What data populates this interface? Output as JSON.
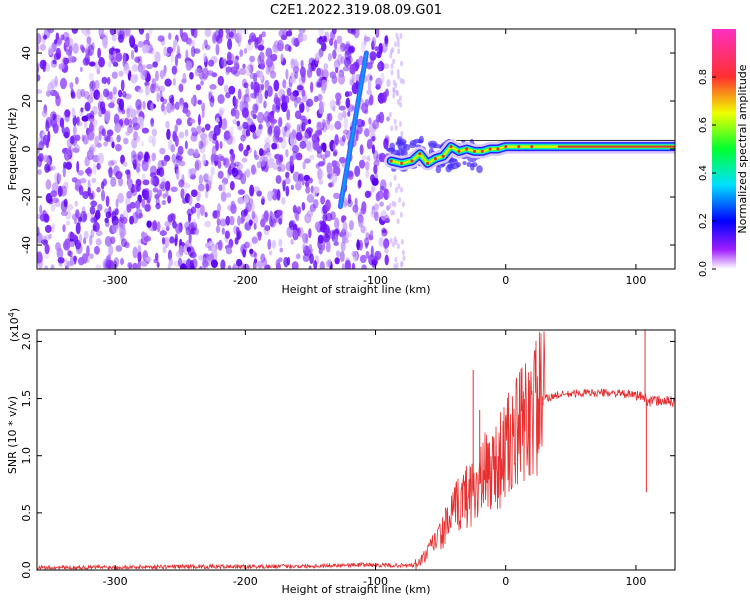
{
  "title": "C2E1.2022.319.08.09.G01",
  "colors": {
    "snr_line": "#e83030",
    "ridge_core": "#e03030",
    "scatter": "#7a22ff",
    "frame": "#000000"
  },
  "chart_data": [
    {
      "type": "heatmap",
      "xlabel": "Height of straight line (km)",
      "ylabel": "Frequency (Hz)",
      "xlim": [
        -360,
        130
      ],
      "ylim": [
        -50,
        50
      ],
      "xticks": [
        -300,
        -200,
        -100,
        0,
        100
      ],
      "yticks": [
        -40,
        -20,
        0,
        20,
        40
      ],
      "colorbar": {
        "label": "Normalized spectral amplitude",
        "range": [
          0,
          1
        ],
        "ticks": [
          "0.0",
          "0.2",
          "0.4",
          "0.6",
          "0.8"
        ],
        "colormap": [
          "#ffffff",
          "#a020ff",
          "#0000ff",
          "#00e0ff",
          "#00ff30",
          "#f0ff00",
          "#ff3030",
          "#ff30c0"
        ]
      },
      "features": {
        "noise_region_x": [
          -360,
          -90
        ],
        "diagonal_streak": {
          "x": [
            -127,
            -107
          ],
          "y": [
            -24,
            40
          ]
        },
        "ridge": {
          "x": [
            -88,
            -80,
            -72,
            -66,
            -60,
            -54,
            -48,
            -42,
            -36,
            -30,
            -24,
            -18,
            -12,
            -6,
            0,
            10,
            20,
            40,
            60,
            80,
            100,
            115,
            130
          ],
          "y": [
            -5,
            -6,
            -5,
            -2,
            -6,
            -4,
            -3,
            1,
            -1,
            0,
            -1,
            -1,
            0,
            0,
            1,
            1,
            1,
            1,
            1,
            1,
            1,
            1,
            1
          ]
        }
      }
    },
    {
      "type": "line",
      "xlabel": "Height of straight line (km)",
      "ylabel": "SNR (10 * v/v)",
      "yscale_label": "(x10",
      "yscale_exp": "4",
      "scale_factor": 10000,
      "xlim": [
        -360,
        130
      ],
      "ylim": [
        0,
        21000
      ],
      "xticks": [
        -300,
        -200,
        -100,
        0,
        100
      ],
      "yticks": [
        0,
        5000,
        10000,
        15000,
        20000
      ],
      "ytick_labels": [
        "0.0",
        "0.5",
        "1.0",
        "1.5",
        "2.0"
      ],
      "series": [
        {
          "x": [
            -360,
            -300,
            -250,
            -200,
            -150,
            -120,
            -100,
            -90,
            -70,
            -65,
            -60,
            -55,
            -50,
            -45,
            -40,
            -35,
            -30,
            -25,
            -20,
            -15,
            -10,
            -5,
            0,
            10,
            20,
            30,
            40,
            50,
            60,
            70,
            80,
            90,
            100,
            104,
            107,
            110,
            115,
            120,
            130
          ],
          "y": [
            200,
            250,
            300,
            300,
            350,
            450,
            450,
            400,
            400,
            800,
            1500,
            2500,
            3000,
            4000,
            5000,
            6000,
            6500,
            7000,
            7500,
            8500,
            9000,
            9500,
            10500,
            12000,
            14000,
            15000,
            15300,
            15400,
            15500,
            15500,
            15500,
            15400,
            15300,
            15200,
            15000,
            14800,
            14800,
            14800,
            14700
          ]
        }
      ],
      "spikes": [
        {
          "x": -25,
          "y": 17500
        },
        {
          "x": -20,
          "y": 14000
        },
        {
          "x": 107,
          "y": 21000
        },
        {
          "x": 108,
          "y": 6800
        }
      ]
    }
  ]
}
